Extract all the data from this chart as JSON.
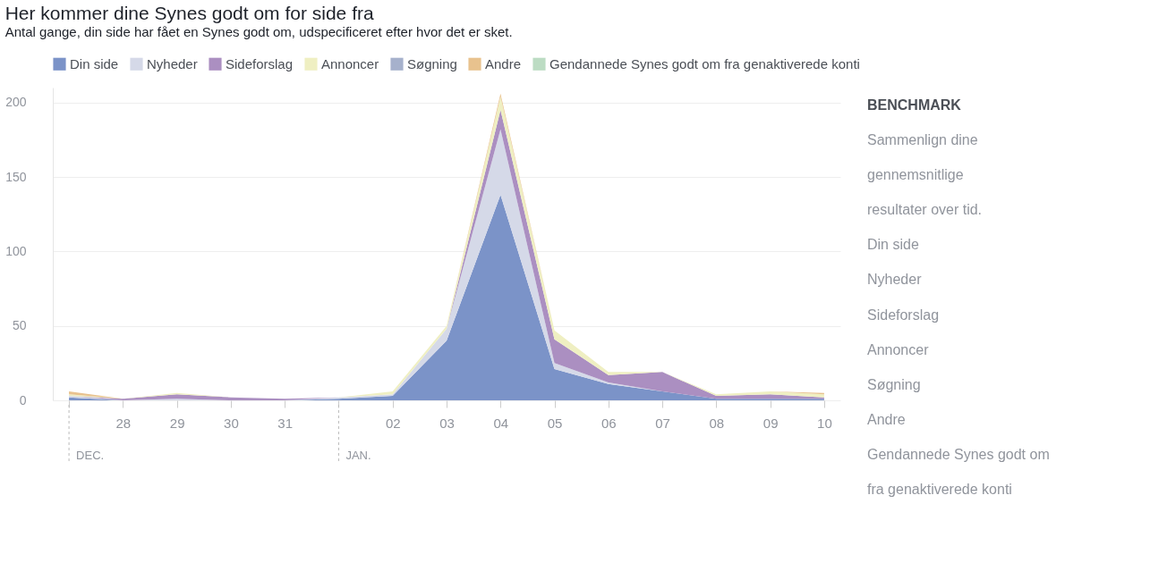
{
  "chart_data": [
    {
      "type": "area",
      "stacked": true,
      "title": "Her kommer dine Synes godt om for side fra",
      "subtitle": "Antal gange, din side har fået en Synes godt om, udspecificeret efter hvor det er sket.",
      "categories": [
        null,
        "28",
        "29",
        "30",
        "31",
        null,
        "02",
        "03",
        "04",
        "05",
        "06",
        "07",
        "08",
        "09",
        "10"
      ],
      "series": [
        {
          "name": "Din side",
          "color": "#7b93c8",
          "values": [
            2,
            0,
            0,
            0,
            0,
            1,
            3,
            40,
            138,
            21,
            11,
            6,
            1,
            1,
            1
          ]
        },
        {
          "name": "Nyheder",
          "color": "#d5d9e8",
          "values": [
            1,
            0,
            1,
            0,
            0,
            1,
            1,
            8,
            44,
            4,
            1,
            0,
            0,
            0,
            0
          ]
        },
        {
          "name": "Sideforslag",
          "color": "#ab8fc1",
          "values": [
            0,
            1,
            3,
            2,
            1,
            0,
            0,
            0,
            13,
            16,
            5,
            13,
            2,
            3,
            1
          ]
        },
        {
          "name": "Annoncer",
          "color": "#efefc2",
          "values": [
            1,
            0,
            1,
            0,
            0,
            0,
            2,
            2,
            9,
            6,
            2,
            0,
            1,
            2,
            2
          ]
        },
        {
          "name": "Søgning",
          "color": "#a6b1cc",
          "values": [
            null,
            null,
            null,
            null,
            null,
            null,
            null,
            null,
            null,
            null,
            null,
            null,
            null,
            null,
            null
          ]
        },
        {
          "name": "Andre",
          "color": "#e8c28e",
          "values": [
            2,
            0,
            0,
            0,
            0,
            0,
            0,
            0,
            2,
            0,
            0,
            0,
            0,
            0,
            1
          ]
        },
        {
          "name": "Gendannede Synes godt om fra genaktiverede konti",
          "color": "#bcdcc3",
          "values": [
            null,
            null,
            null,
            null,
            null,
            null,
            null,
            null,
            null,
            null,
            null,
            null,
            null,
            null,
            null
          ]
        }
      ],
      "ylim": [
        0,
        210
      ],
      "yticks": [
        0,
        50,
        100,
        150,
        200
      ],
      "grid": "y",
      "legend": "top left",
      "annotations": [
        "DEC.",
        "JAN."
      ]
    },
    {
      "type": "other",
      "title": "BENCHMARK",
      "subtitle": "Sammenlign dine gennemsnitlige resultater over tid.",
      "annotations": [
        "Din side",
        "Nyheder",
        "Sideforslag",
        "Annoncer",
        "Søgning",
        "Andre",
        "Gendannede Synes godt om fra genaktiverede konti"
      ]
    }
  ]
}
